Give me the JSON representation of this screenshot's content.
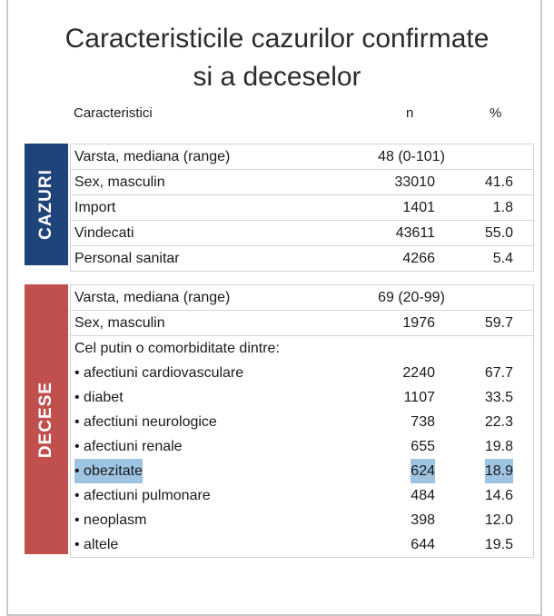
{
  "title": {
    "line1": "Caracteristicile cazurilor confirmate",
    "line2": "si a deceselor"
  },
  "header": {
    "label": "Caracteristici",
    "n": "n",
    "pct": "%"
  },
  "cazuri": {
    "label": "CAZURI",
    "color": "#1f4479",
    "median": {
      "label": "Varsta, mediana (range)",
      "value": "48 (0-101)"
    },
    "rows": [
      {
        "label": "Sex, masculin",
        "n": "33010",
        "pct": "41.6"
      },
      {
        "label": "Import",
        "n": "1401",
        "pct": "1.8"
      },
      {
        "label": "Vindecati",
        "n": "43611",
        "pct": "55.0"
      },
      {
        "label": "Personal sanitar",
        "n": "4266",
        "pct": "5.4"
      }
    ]
  },
  "decese": {
    "label": "DECESE",
    "color": "#c0504d",
    "median": {
      "label": "Varsta, mediana (range)",
      "value": "69 (20-99)"
    },
    "sex": {
      "label": "Sex, masculin",
      "n": "1976",
      "pct": "59.7"
    },
    "comorb_heading": "Cel putin o comorbiditate dintre:",
    "rows": [
      {
        "label": "• afectiuni cardiovasculare",
        "n": "2240",
        "pct": "67.7"
      },
      {
        "label": "• diabet",
        "n": "1107",
        "pct": "33.5"
      },
      {
        "label": "• afectiuni neurologice",
        "n": "738",
        "pct": "22.3"
      },
      {
        "label": "• afectiuni renale",
        "n": "655",
        "pct": "19.8"
      },
      {
        "label": "• obezitate",
        "n": "624",
        "pct": "18.9",
        "highlighted": true
      },
      {
        "label": "• afectiuni pulmonare",
        "n": "484",
        "pct": "14.6"
      },
      {
        "label": "• neoplasm",
        "n": "398",
        "pct": "12.0"
      },
      {
        "label": "• altele",
        "n": "644",
        "pct": "19.5"
      }
    ]
  }
}
